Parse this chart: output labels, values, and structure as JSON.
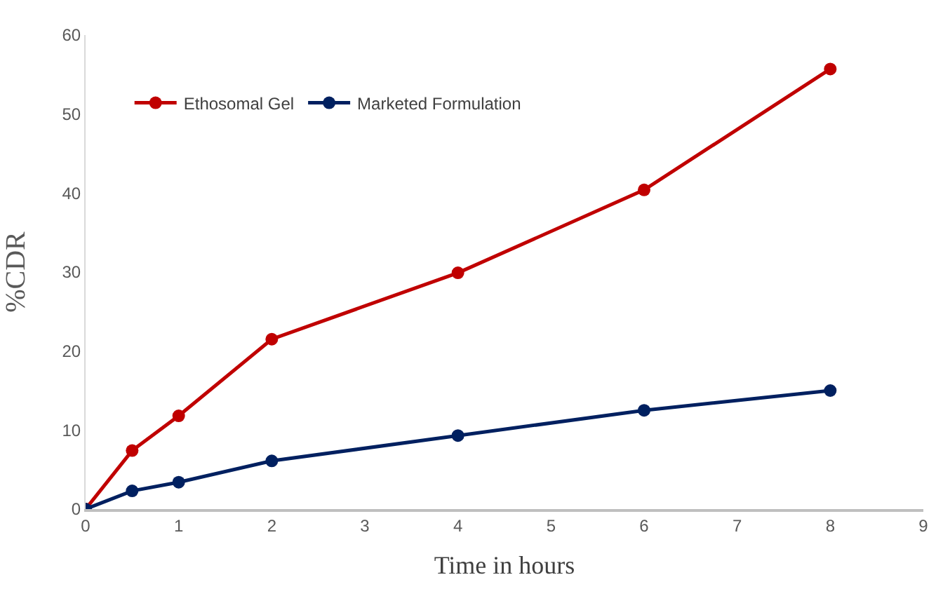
{
  "chart_data": {
    "type": "line",
    "xlabel": "Time in hours",
    "ylabel": "%CDR",
    "x": [
      0,
      0.5,
      1,
      2,
      4,
      6,
      8
    ],
    "series": [
      {
        "name": "Ethosomal Gel",
        "color": "#c00000",
        "values": [
          0,
          7.4,
          11.8,
          21.5,
          29.9,
          40.4,
          55.7
        ]
      },
      {
        "name": "Marketed Formulation",
        "color": "#002060",
        "values": [
          0,
          2.3,
          3.4,
          6.1,
          9.3,
          12.5,
          15.0
        ]
      }
    ],
    "xlim": [
      0,
      9
    ],
    "xticks": [
      0,
      1,
      2,
      3,
      4,
      5,
      6,
      7,
      8,
      9
    ],
    "ylim": [
      0,
      60
    ],
    "yticks": [
      0,
      10,
      20,
      30,
      40,
      50,
      60
    ],
    "legend": "top left",
    "marker": "circle",
    "line_style": "solid"
  }
}
